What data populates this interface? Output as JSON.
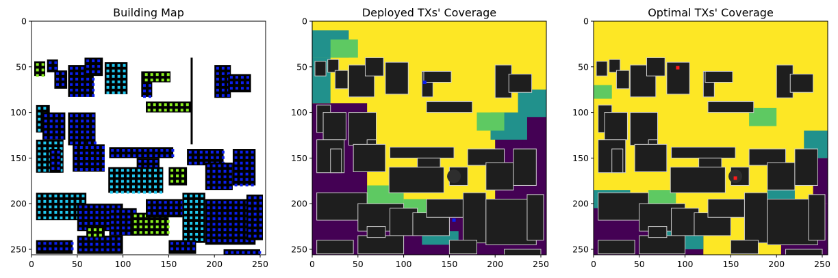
{
  "chart_data": [
    {
      "type": "heatmap",
      "title": "Building Map",
      "xlabel": "",
      "ylabel": "",
      "xlim": [
        0,
        256
      ],
      "ylim": [
        256,
        0
      ],
      "xticks": [
        "0",
        "50",
        "100",
        "150",
        "200",
        "250"
      ],
      "yticks": [
        "0",
        "50",
        "100",
        "150",
        "200",
        "250"
      ],
      "background": "#ffffff",
      "building_color": "#000000",
      "marker_colors": [
        "#0a1ef0",
        "#1fc8f0",
        "#8af01e"
      ]
    },
    {
      "type": "heatmap",
      "title": "Deployed TXs' Coverage",
      "xlabel": "",
      "ylabel": "",
      "xlim": [
        0,
        256
      ],
      "ylim": [
        256,
        0
      ],
      "xticks": [
        "0",
        "50",
        "100",
        "150",
        "200",
        "250"
      ],
      "yticks": [
        "0",
        "50",
        "100",
        "150",
        "200",
        "250"
      ],
      "colormap": [
        "#440154",
        "#21918c",
        "#5ec962",
        "#fde725"
      ],
      "building_color": "#1e1e1e",
      "tx_color": "#0a1ef0",
      "tx_points": [
        [
          123,
          67
        ],
        [
          155,
          218
        ]
      ]
    },
    {
      "type": "heatmap",
      "title": "Optimal TXs' Coverage",
      "xlabel": "",
      "ylabel": "",
      "xlim": [
        0,
        256
      ],
      "ylim": [
        256,
        0
      ],
      "xticks": [
        "0",
        "50",
        "100",
        "150",
        "200",
        "250"
      ],
      "yticks": [
        "0",
        "50",
        "100",
        "150",
        "200",
        "250"
      ],
      "colormap": [
        "#440154",
        "#21918c",
        "#5ec962",
        "#fde725"
      ],
      "building_color": "#1e1e1e",
      "tx_color": "#ff1a1a",
      "tx_points": [
        [
          92,
          51
        ],
        [
          155,
          172
        ]
      ]
    }
  ]
}
